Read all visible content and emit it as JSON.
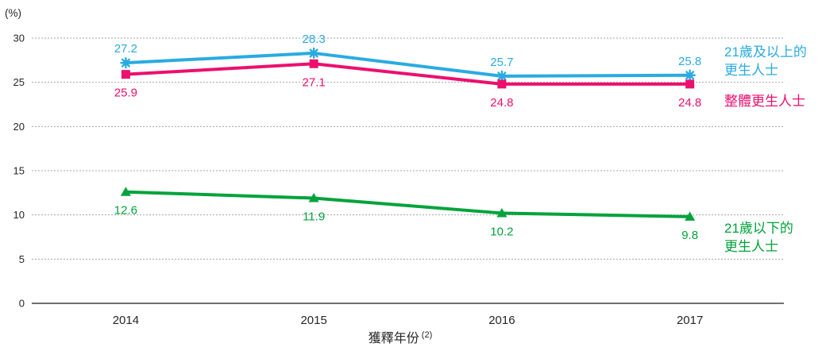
{
  "chart_data": {
    "type": "line",
    "title": "",
    "ylabel": "(%)",
    "xlabel": "獲釋年份",
    "xlabel_superscript": "(2)",
    "categories": [
      "2014",
      "2015",
      "2016",
      "2017"
    ],
    "ylim": [
      0,
      30
    ],
    "yticks": [
      0,
      5,
      10,
      15,
      20,
      25,
      30
    ],
    "grid": "horizontal-dashed",
    "legend_position": "right",
    "colors": {
      "gridline": "#A6A6A6",
      "axis": "#404040",
      "tick_text": "#262626"
    },
    "series": [
      {
        "name": "21歲及以上的更生人士",
        "legend_lines": [
          "21歲及以上的",
          "更生人士"
        ],
        "values": [
          27.2,
          28.3,
          25.7,
          25.8
        ],
        "color": "#29ABE2",
        "marker": "star",
        "label_position": "above"
      },
      {
        "name": "整體更生人士",
        "legend_lines": [
          "整體更生人士"
        ],
        "values": [
          25.9,
          27.1,
          24.8,
          24.8
        ],
        "color": "#EC0F6E",
        "marker": "square",
        "label_position": "below"
      },
      {
        "name": "21歲以下的更生人士",
        "legend_lines": [
          "21歲以下的",
          "更生人士"
        ],
        "values": [
          12.6,
          11.9,
          10.2,
          9.8
        ],
        "color": "#00A33C",
        "marker": "triangle",
        "label_position": "below"
      }
    ]
  }
}
